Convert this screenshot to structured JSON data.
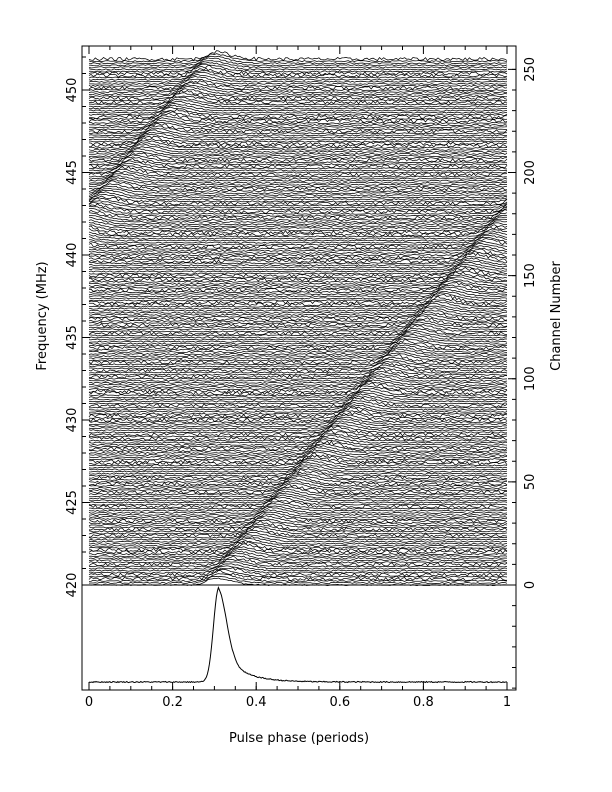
{
  "chart_data": {
    "type": "line",
    "title": "",
    "xlabel": "Pulse phase (periods)",
    "ylabel_left": "Frequency (MHz)",
    "ylabel_right": "Channel Number",
    "xlim": [
      0,
      1
    ],
    "x_ticks": [
      "0",
      "0.2",
      "0.4",
      "0.6",
      "0.8",
      "1"
    ],
    "x_tick_values": [
      0,
      0.2,
      0.4,
      0.6,
      0.8,
      1.0
    ],
    "freq_lim": [
      420,
      452
    ],
    "freq_ticks": [
      "420",
      "425",
      "430",
      "435",
      "440",
      "445",
      "450"
    ],
    "freq_tick_values": [
      420,
      425,
      430,
      435,
      440,
      445,
      450
    ],
    "channel_lim": [
      0,
      256
    ],
    "channel_ticks": [
      "0",
      "50",
      "100",
      "150",
      "200",
      "250"
    ],
    "channel_tick_values": [
      0,
      50,
      100,
      150,
      200,
      250
    ],
    "grid": false,
    "legend": "none",
    "dispersed_pulse_tracks": [
      {
        "phase_at_channel_0": 0.3,
        "phase_at_channel_255": 1.3
      },
      {
        "phase_at_channel_0": -0.7,
        "phase_at_channel_255": 0.3
      }
    ],
    "integrated_profile": {
      "peak_phase": 0.31,
      "peak_value": 1.0,
      "baseline": 0.0
    }
  }
}
